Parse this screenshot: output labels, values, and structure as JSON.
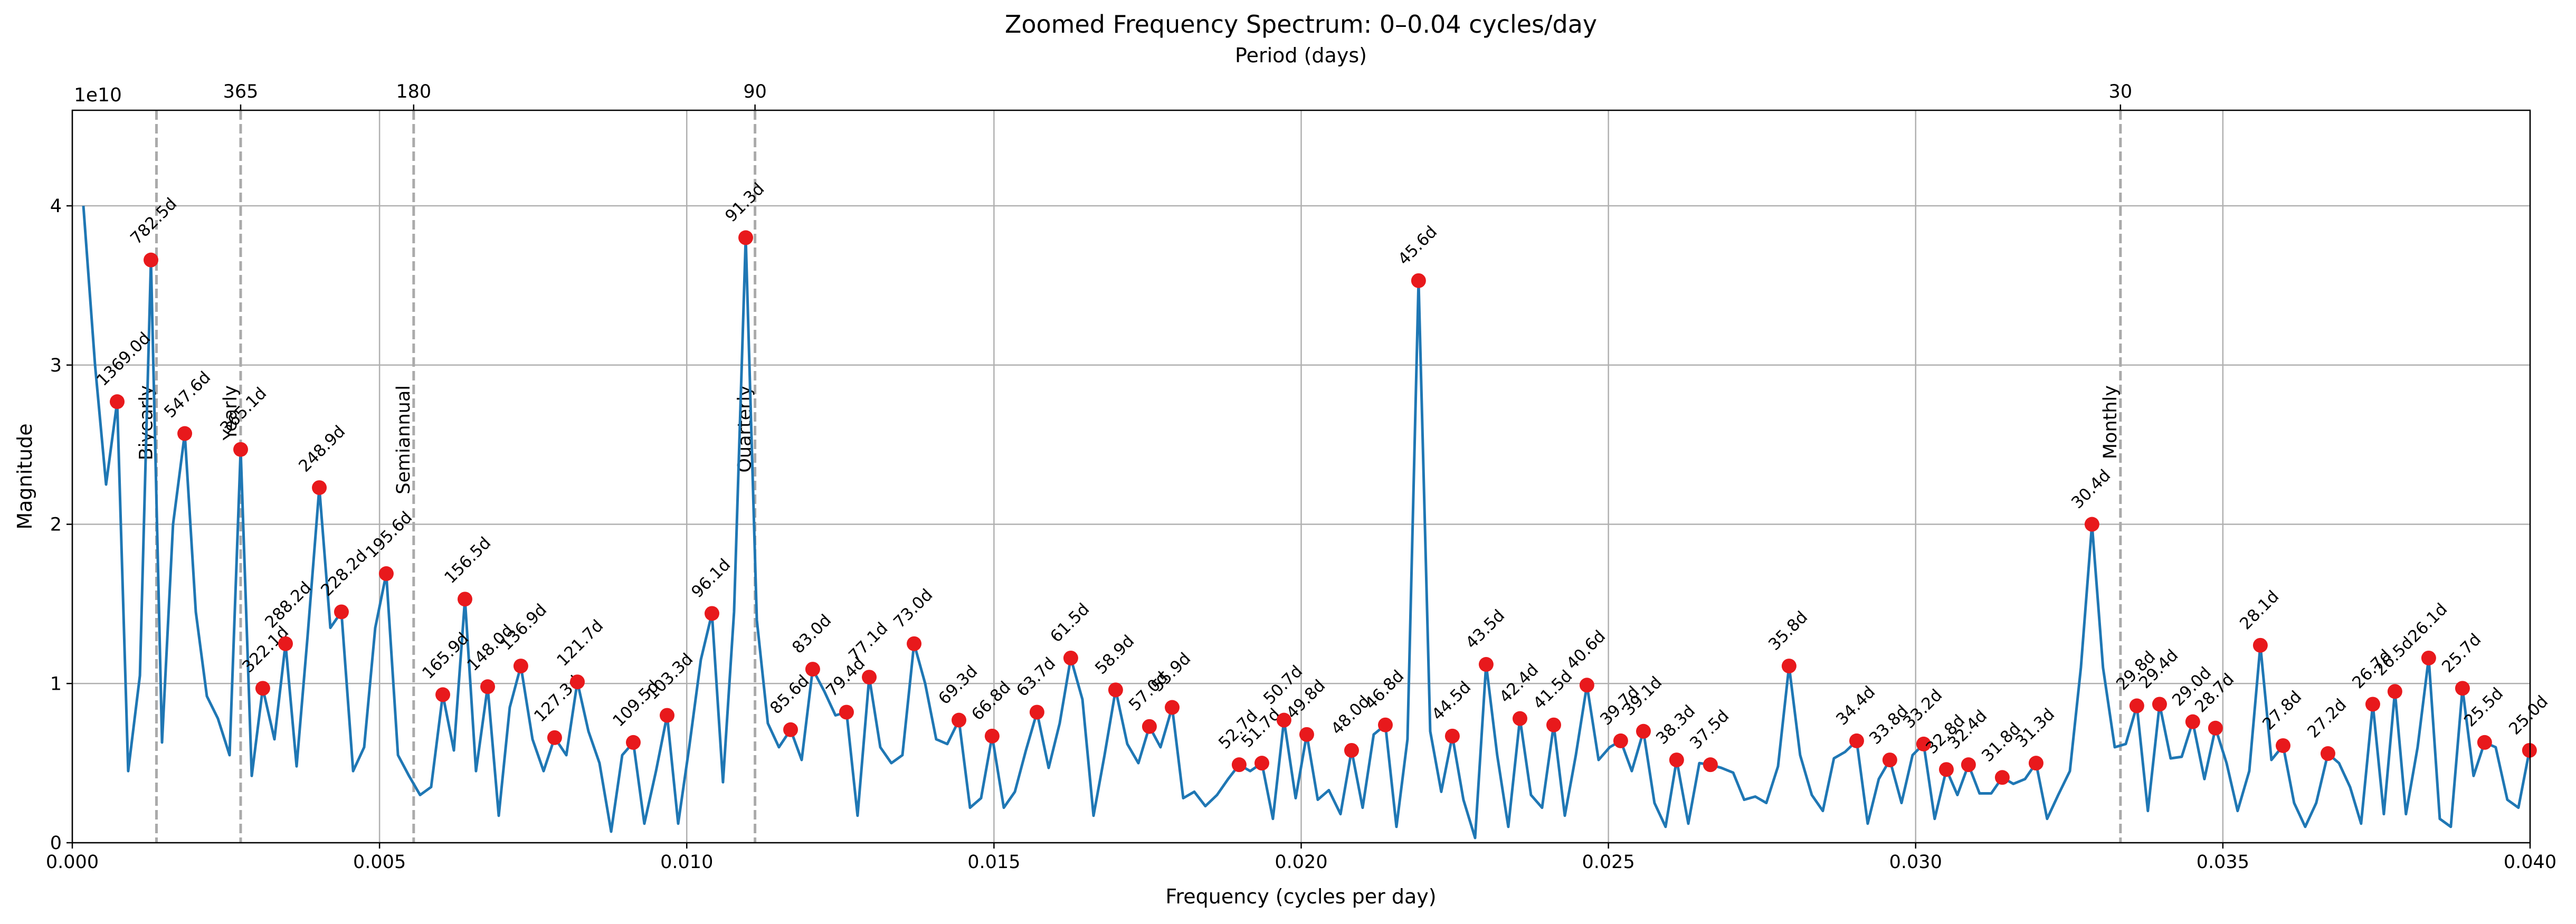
{
  "chart_data": {
    "type": "line",
    "title": "Zoomed Frequency Spectrum: 0–0.04 cycles/day",
    "x_label": "Frequency (cycles per day)",
    "y_label": "Magnitude",
    "y_offset_label": "1e10",
    "x2_label": "Period (days)",
    "x2_scale": "reciprocal",
    "x2ticks": [
      365,
      180,
      90,
      30
    ],
    "xlim": [
      0,
      0.04
    ],
    "xticks": [
      {
        "value": 0,
        "label": "0.000"
      },
      {
        "value": 0.005,
        "label": "0.005"
      },
      {
        "value": 0.01,
        "label": "0.010"
      },
      {
        "value": 0.015,
        "label": "0.015"
      },
      {
        "value": 0.02,
        "label": "0.020"
      },
      {
        "value": 0.025,
        "label": "0.025"
      },
      {
        "value": 0.03,
        "label": "0.030"
      },
      {
        "value": 0.035,
        "label": "0.035"
      },
      {
        "value": 0.04,
        "label": "0.040"
      }
    ],
    "ylim": [
      0,
      4.6
    ],
    "yticks": [
      0,
      1,
      2,
      3,
      4
    ],
    "grid": true,
    "reference_lines": {
      "color": "#aaaaaa",
      "lines": [
        {
          "period": 730,
          "label": "Biyearly"
        },
        {
          "period": 365,
          "label": "Yearly"
        },
        {
          "period": 180,
          "label": "Semiannual"
        },
        {
          "period": 90,
          "label": "Quarterly"
        },
        {
          "period": 30,
          "label": "Monthly"
        }
      ]
    },
    "series": [
      {
        "type": "line",
        "color": "#1f77b4",
        "x": [
          0.00018,
          0.00037,
          0.00055,
          0.00073,
          0.00091,
          0.0011,
          0.00128,
          0.00146,
          0.00164,
          0.00183,
          0.00201,
          0.00219,
          0.00237,
          0.00256,
          0.00274,
          0.00292,
          0.0031,
          0.00329,
          0.00347,
          0.00365,
          0.00383,
          0.00402,
          0.0042,
          0.00438,
          0.00457,
          0.00475,
          0.00493,
          0.00511,
          0.0053,
          0.00548,
          0.00566,
          0.00584,
          0.00603,
          0.00621,
          0.00639,
          0.00657,
          0.00676,
          0.00694,
          0.00712,
          0.0073,
          0.00749,
          0.00767,
          0.00785,
          0.00804,
          0.00822,
          0.0084,
          0.00858,
          0.00877,
          0.00895,
          0.00913,
          0.00931,
          0.0095,
          0.00968,
          0.00986,
          0.01004,
          0.01023,
          0.01041,
          0.01059,
          0.01077,
          0.01096,
          0.01114,
          0.01132,
          0.0115,
          0.01169,
          0.01187,
          0.01205,
          0.01224,
          0.01242,
          0.0126,
          0.01278,
          0.01297,
          0.01315,
          0.01333,
          0.01351,
          0.0137,
          0.01388,
          0.01406,
          0.01424,
          0.01443,
          0.01461,
          0.01479,
          0.01497,
          0.01516,
          0.01534,
          0.01552,
          0.0157,
          0.01589,
          0.01607,
          0.01625,
          0.01644,
          0.01662,
          0.0168,
          0.01698,
          0.01717,
          0.01735,
          0.01753,
          0.01771,
          0.0179,
          0.01808,
          0.01826,
          0.01844,
          0.01863,
          0.01881,
          0.01899,
          0.01917,
          0.01936,
          0.01954,
          0.01972,
          0.01991,
          0.02009,
          0.02027,
          0.02045,
          0.02064,
          0.02082,
          0.021,
          0.02118,
          0.02137,
          0.02155,
          0.02173,
          0.02191,
          0.0221,
          0.02228,
          0.02246,
          0.02264,
          0.02283,
          0.02301,
          0.02319,
          0.02337,
          0.02356,
          0.02374,
          0.02392,
          0.02411,
          0.02429,
          0.02447,
          0.02465,
          0.02484,
          0.02502,
          0.0252,
          0.02538,
          0.02557,
          0.02575,
          0.02593,
          0.02611,
          0.0263,
          0.02648,
          0.02666,
          0.02684,
          0.02703,
          0.02721,
          0.02739,
          0.02757,
          0.02776,
          0.02794,
          0.02812,
          0.02831,
          0.02849,
          0.02867,
          0.02885,
          0.02904,
          0.02922,
          0.0294,
          0.02958,
          0.02977,
          0.02995,
          0.03013,
          0.03031,
          0.0305,
          0.03068,
          0.03086,
          0.03104,
          0.03123,
          0.03141,
          0.03159,
          0.03178,
          0.03196,
          0.03214,
          0.03232,
          0.03251,
          0.03269,
          0.03287,
          0.03305,
          0.03324,
          0.03342,
          0.0336,
          0.03378,
          0.03397,
          0.03415,
          0.03433,
          0.03451,
          0.0347,
          0.03488,
          0.03506,
          0.03524,
          0.03543,
          0.03561,
          0.03579,
          0.03598,
          0.03616,
          0.03634,
          0.03652,
          0.03671,
          0.03689,
          0.03707,
          0.03725,
          0.03744,
          0.03762,
          0.0378,
          0.03798,
          0.03817,
          0.03835,
          0.03853,
          0.03871,
          0.0389,
          0.03908,
          0.03926,
          0.03944,
          0.03963,
          0.03981,
          0.03999
        ],
        "values": [
          4.0,
          3.0,
          2.25,
          2.77,
          0.45,
          1.05,
          3.66,
          0.63,
          2.0,
          2.57,
          1.45,
          0.92,
          0.78,
          0.55,
          2.47,
          0.42,
          0.97,
          0.65,
          1.25,
          0.48,
          1.3,
          2.23,
          1.35,
          1.45,
          0.45,
          0.6,
          1.35,
          1.69,
          0.55,
          0.42,
          0.3,
          0.35,
          0.93,
          0.58,
          1.53,
          0.45,
          0.98,
          0.17,
          0.85,
          1.11,
          0.65,
          0.45,
          0.66,
          0.55,
          1.01,
          0.7,
          0.5,
          0.07,
          0.55,
          0.63,
          0.12,
          0.45,
          0.8,
          0.12,
          0.6,
          1.15,
          1.44,
          0.38,
          1.45,
          3.8,
          1.4,
          0.75,
          0.6,
          0.71,
          0.52,
          1.09,
          0.95,
          0.8,
          0.82,
          0.17,
          1.04,
          0.6,
          0.5,
          0.55,
          1.25,
          1.0,
          0.65,
          0.62,
          0.77,
          0.22,
          0.28,
          0.67,
          0.22,
          0.32,
          0.58,
          0.82,
          0.47,
          0.75,
          1.16,
          0.9,
          0.17,
          0.55,
          0.96,
          0.62,
          0.5,
          0.73,
          0.6,
          0.85,
          0.28,
          0.32,
          0.23,
          0.3,
          0.4,
          0.49,
          0.45,
          0.5,
          0.15,
          0.77,
          0.28,
          0.68,
          0.27,
          0.33,
          0.18,
          0.58,
          0.22,
          0.68,
          0.74,
          0.1,
          0.65,
          3.53,
          0.7,
          0.32,
          0.67,
          0.27,
          0.03,
          1.12,
          0.55,
          0.1,
          0.78,
          0.3,
          0.22,
          0.74,
          0.17,
          0.55,
          0.99,
          0.52,
          0.6,
          0.64,
          0.45,
          0.7,
          0.25,
          0.1,
          0.52,
          0.12,
          0.5,
          0.49,
          0.47,
          0.44,
          0.27,
          0.29,
          0.25,
          0.48,
          1.11,
          0.55,
          0.3,
          0.2,
          0.53,
          0.57,
          0.64,
          0.12,
          0.4,
          0.52,
          0.25,
          0.55,
          0.62,
          0.15,
          0.46,
          0.3,
          0.49,
          0.31,
          0.31,
          0.41,
          0.37,
          0.4,
          0.5,
          0.15,
          0.3,
          0.45,
          1.1,
          2.0,
          1.1,
          0.6,
          0.62,
          0.86,
          0.2,
          0.87,
          0.53,
          0.54,
          0.76,
          0.4,
          0.72,
          0.5,
          0.2,
          0.45,
          1.24,
          0.52,
          0.61,
          0.25,
          0.1,
          0.25,
          0.56,
          0.5,
          0.35,
          0.12,
          0.87,
          0.18,
          0.95,
          0.18,
          0.6,
          1.16,
          0.15,
          0.1,
          0.97,
          0.42,
          0.63,
          0.6,
          0.27,
          0.22,
          0.58
        ]
      },
      {
        "type": "scatter",
        "color": "#e8191c",
        "x": [
          0.00073,
          0.00128,
          0.00183,
          0.00274,
          0.0031,
          0.00347,
          0.00402,
          0.00438,
          0.00511,
          0.00603,
          0.00639,
          0.00676,
          0.0073,
          0.00785,
          0.00822,
          0.00913,
          0.00968,
          0.01041,
          0.01096,
          0.01169,
          0.01205,
          0.0126,
          0.01297,
          0.0137,
          0.01443,
          0.01497,
          0.0157,
          0.01625,
          0.01698,
          0.01753,
          0.0179,
          0.01899,
          0.01936,
          0.01972,
          0.02009,
          0.02082,
          0.02137,
          0.02191,
          0.02246,
          0.02301,
          0.02356,
          0.02411,
          0.02465,
          0.0252,
          0.02557,
          0.02611,
          0.02666,
          0.02794,
          0.02904,
          0.02958,
          0.03013,
          0.0305,
          0.03086,
          0.03141,
          0.03196,
          0.03287,
          0.0336,
          0.03397,
          0.03451,
          0.03488,
          0.03561,
          0.03598,
          0.03671,
          0.03744,
          0.0378,
          0.03835,
          0.0389,
          0.03926,
          0.03999
        ],
        "values": [
          2.77,
          3.66,
          2.57,
          2.47,
          0.97,
          1.25,
          2.23,
          1.45,
          1.69,
          0.93,
          1.53,
          0.98,
          1.11,
          0.66,
          1.01,
          0.63,
          0.8,
          1.44,
          3.8,
          0.71,
          1.09,
          0.82,
          1.04,
          1.25,
          0.77,
          0.67,
          0.82,
          1.16,
          0.96,
          0.73,
          0.85,
          0.49,
          0.5,
          0.77,
          0.68,
          0.58,
          0.74,
          3.53,
          0.67,
          1.12,
          0.78,
          0.74,
          0.99,
          0.64,
          0.7,
          0.52,
          0.49,
          1.11,
          0.64,
          0.52,
          0.62,
          0.46,
          0.49,
          0.41,
          0.5,
          2.0,
          0.86,
          0.87,
          0.76,
          0.72,
          1.24,
          0.61,
          0.56,
          0.87,
          0.95,
          1.16,
          0.97,
          0.63,
          0.58
        ],
        "labels": [
          "1369.0d",
          "782.5d",
          "547.6d",
          "365.1d",
          "322.1d",
          "288.2d",
          "248.9d",
          "228.2d",
          "195.6d",
          "165.9d",
          "156.5d",
          "148.0d",
          "136.9d",
          "127.3d",
          "121.7d",
          "109.5d",
          "103.3d",
          "96.1d",
          "91.3d",
          "85.6d",
          "83.0d",
          "79.4d",
          "77.1d",
          "73.0d",
          "69.3d",
          "66.8d",
          "63.7d",
          "61.5d",
          "58.9d",
          "57.0d",
          "55.9d",
          "52.7d",
          "51.7d",
          "50.7d",
          "49.8d",
          "48.0d",
          "46.8d",
          "45.6d",
          "44.5d",
          "43.5d",
          "42.4d",
          "41.5d",
          "40.6d",
          "39.7d",
          "39.1d",
          "38.3d",
          "37.5d",
          "35.8d",
          "34.4d",
          "33.8d",
          "33.2d",
          "32.8d",
          "32.4d",
          "31.8d",
          "31.3d",
          "30.4d",
          "29.8d",
          "29.4d",
          "29.0d",
          "28.7d",
          "28.1d",
          "27.8d",
          "27.2d",
          "26.7d",
          "26.5d",
          "26.1d",
          "25.7d",
          "25.5d",
          "25.0d"
        ]
      }
    ]
  }
}
